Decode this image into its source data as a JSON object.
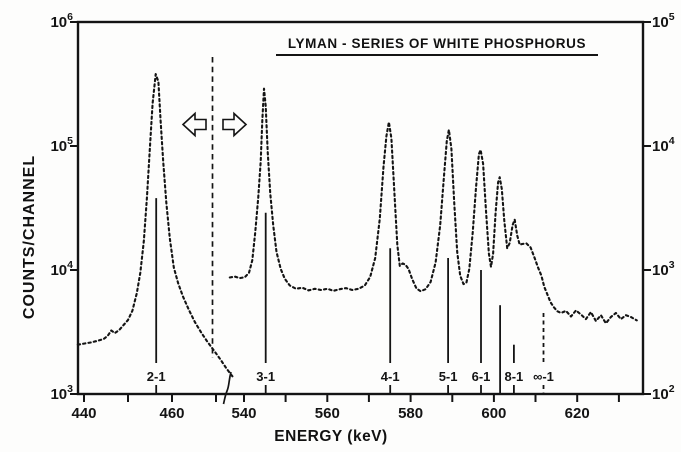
{
  "chart_data": {
    "type": "line",
    "title": "LYMAN - SERIES OF WHITE PHOSPHORUS",
    "xlabel": "ENERGY (keV)",
    "ylabel": "COUNTS/CHANNEL",
    "y_scale": "log",
    "y_axis_left": {
      "tick_exponents": [
        6,
        5,
        4,
        3
      ],
      "range_counts": [
        1000,
        1000000
      ]
    },
    "y_axis_right": {
      "tick_exponents": [
        5,
        4,
        3,
        2
      ],
      "range_counts": [
        100,
        100000
      ]
    },
    "x_axis": {
      "segments": [
        {
          "range_kev": [
            438.5,
            474.0
          ],
          "ticks_kev": [
            440,
            450,
            460,
            470
          ],
          "tick_labels": [
            440,
            460
          ]
        },
        {
          "range_kev": [
            536.0,
            635.8
          ],
          "ticks_kev": [
            540,
            550,
            560,
            570,
            580,
            590,
            600,
            610,
            620,
            630
          ],
          "tick_labels": [
            540,
            560,
            580,
            600,
            620
          ]
        }
      ],
      "break_kev": 469
    },
    "divider": {
      "style": "dashed-vertical-line",
      "arrows": [
        "left",
        "right"
      ]
    },
    "markers": [
      {
        "label": "2-1",
        "energy": 456.4,
        "top_counts": 38000,
        "scale": "left",
        "style": "solid"
      },
      {
        "label": "3-1",
        "energy": 545.2,
        "top_counts": 2900,
        "scale": "right",
        "style": "solid"
      },
      {
        "label": "4-1",
        "energy": 575.1,
        "top_counts": 1500,
        "scale": "right",
        "style": "solid"
      },
      {
        "label": "5-1",
        "energy": 589.0,
        "top_counts": 1250,
        "scale": "right",
        "style": "solid"
      },
      {
        "label": "6-1",
        "energy": 596.9,
        "top_counts": 1000,
        "scale": "right",
        "style": "solid"
      },
      {
        "label": "",
        "energy": 601.5,
        "top_counts": 520,
        "scale": "right",
        "style": "solid"
      },
      {
        "label": "8-1",
        "energy": 604.8,
        "top_counts": 250,
        "scale": "right",
        "style": "solid"
      },
      {
        "label": "∞-1",
        "energy": 611.9,
        "top_counts": 450,
        "scale": "right",
        "style": "dashed"
      }
    ],
    "series": [
      {
        "name": "spectrum-low-energy-segment",
        "scale": "left",
        "points": [
          [
            438.6,
            2500
          ],
          [
            440,
            2550
          ],
          [
            441.5,
            2600
          ],
          [
            443,
            2680
          ],
          [
            444.5,
            2780
          ],
          [
            445.4,
            2950
          ],
          [
            446.2,
            3250
          ],
          [
            447,
            3100
          ],
          [
            448,
            3280
          ],
          [
            449,
            3600
          ],
          [
            450,
            3950
          ],
          [
            451,
            4700
          ],
          [
            452,
            6500
          ],
          [
            452.8,
            9500
          ],
          [
            453.6,
            17000
          ],
          [
            454.3,
            38000
          ],
          [
            455,
            100000
          ],
          [
            455.6,
            220000
          ],
          [
            456.3,
            380000
          ],
          [
            456.9,
            330000
          ],
          [
            457.4,
            160000
          ],
          [
            458,
            75000
          ],
          [
            458.7,
            35000
          ],
          [
            459.5,
            18000
          ],
          [
            460.4,
            10500
          ],
          [
            461.4,
            7800
          ],
          [
            462.5,
            6100
          ],
          [
            463.8,
            4800
          ],
          [
            465.2,
            3800
          ],
          [
            466.6,
            3150
          ],
          [
            468,
            2650
          ],
          [
            469.5,
            2250
          ],
          [
            471,
            1900
          ],
          [
            472.4,
            1600
          ],
          [
            473.8,
            1380
          ]
        ]
      },
      {
        "name": "spectrum-high-energy-segment",
        "scale": "right",
        "points": [
          [
            536.6,
            870
          ],
          [
            537.8,
            885
          ],
          [
            539,
            860
          ],
          [
            540.2,
            875
          ],
          [
            541.2,
            950
          ],
          [
            542,
            1200
          ],
          [
            542.7,
            2000
          ],
          [
            543.4,
            3800
          ],
          [
            544,
            7500
          ],
          [
            544.4,
            16000
          ],
          [
            544.8,
            29000
          ],
          [
            545.2,
            21000
          ],
          [
            545.7,
            9000
          ],
          [
            546.3,
            4200
          ],
          [
            547,
            2300
          ],
          [
            547.8,
            1400
          ],
          [
            548.8,
            1020
          ],
          [
            549.8,
            850
          ],
          [
            551,
            750
          ],
          [
            552.5,
            705
          ],
          [
            554,
            720
          ],
          [
            555.5,
            685
          ],
          [
            557,
            705
          ],
          [
            558.5,
            690
          ],
          [
            560,
            705
          ],
          [
            561.5,
            680
          ],
          [
            563,
            700
          ],
          [
            564.5,
            715
          ],
          [
            566,
            690
          ],
          [
            567.5,
            705
          ],
          [
            569,
            750
          ],
          [
            570.3,
            880
          ],
          [
            571.5,
            1250
          ],
          [
            572.6,
            2600
          ],
          [
            573.5,
            6800
          ],
          [
            574.2,
            12000
          ],
          [
            574.8,
            15600
          ],
          [
            575.4,
            11500
          ],
          [
            576.1,
            4200
          ],
          [
            576.8,
            1600
          ],
          [
            577.4,
            1080
          ],
          [
            578.1,
            1130
          ],
          [
            578.8,
            1100
          ],
          [
            579.5,
            1020
          ],
          [
            580.4,
            840
          ],
          [
            581.4,
            710
          ],
          [
            582.4,
            675
          ],
          [
            583.6,
            700
          ],
          [
            584.8,
            800
          ],
          [
            586,
            1150
          ],
          [
            587.1,
            2300
          ],
          [
            588,
            5600
          ],
          [
            588.7,
            11000
          ],
          [
            589.2,
            13500
          ],
          [
            589.8,
            9500
          ],
          [
            590.5,
            3400
          ],
          [
            591.2,
            1400
          ],
          [
            591.9,
            900
          ],
          [
            592.7,
            770
          ],
          [
            593.4,
            790
          ],
          [
            594.1,
            1020
          ],
          [
            594.9,
            2000
          ],
          [
            595.7,
            4600
          ],
          [
            596.4,
            8600
          ],
          [
            596.8,
            9300
          ],
          [
            597.4,
            7200
          ],
          [
            598.1,
            3000
          ],
          [
            598.8,
            1350
          ],
          [
            599.3,
            1060
          ],
          [
            599.8,
            1350
          ],
          [
            600.4,
            2900
          ],
          [
            601,
            5100
          ],
          [
            601.4,
            5600
          ],
          [
            601.9,
            4500
          ],
          [
            602.5,
            2500
          ],
          [
            603.2,
            1500
          ],
          [
            603.8,
            1650
          ],
          [
            604.5,
            2300
          ],
          [
            605,
            2550
          ],
          [
            605.6,
            1900
          ],
          [
            606.2,
            1600
          ],
          [
            606.8,
            1620
          ],
          [
            607.8,
            1640
          ],
          [
            608.8,
            1520
          ],
          [
            609.7,
            1270
          ],
          [
            610.6,
            1050
          ],
          [
            611.4,
            900
          ],
          [
            612.1,
            730
          ],
          [
            612.8,
            640
          ],
          [
            613.6,
            550
          ],
          [
            614.4,
            500
          ],
          [
            615.2,
            465
          ],
          [
            616.1,
            450
          ],
          [
            617.3,
            468
          ],
          [
            618.5,
            422
          ],
          [
            619.7,
            472
          ],
          [
            620.9,
            438
          ],
          [
            622.1,
            402
          ],
          [
            623.3,
            458
          ],
          [
            624.5,
            388
          ],
          [
            625.7,
            432
          ],
          [
            626.9,
            372
          ],
          [
            628.1,
            418
          ],
          [
            629.3,
            450
          ],
          [
            630.5,
            402
          ],
          [
            631.7,
            432
          ],
          [
            632.9,
            418
          ],
          [
            634.3,
            392
          ]
        ]
      }
    ]
  }
}
